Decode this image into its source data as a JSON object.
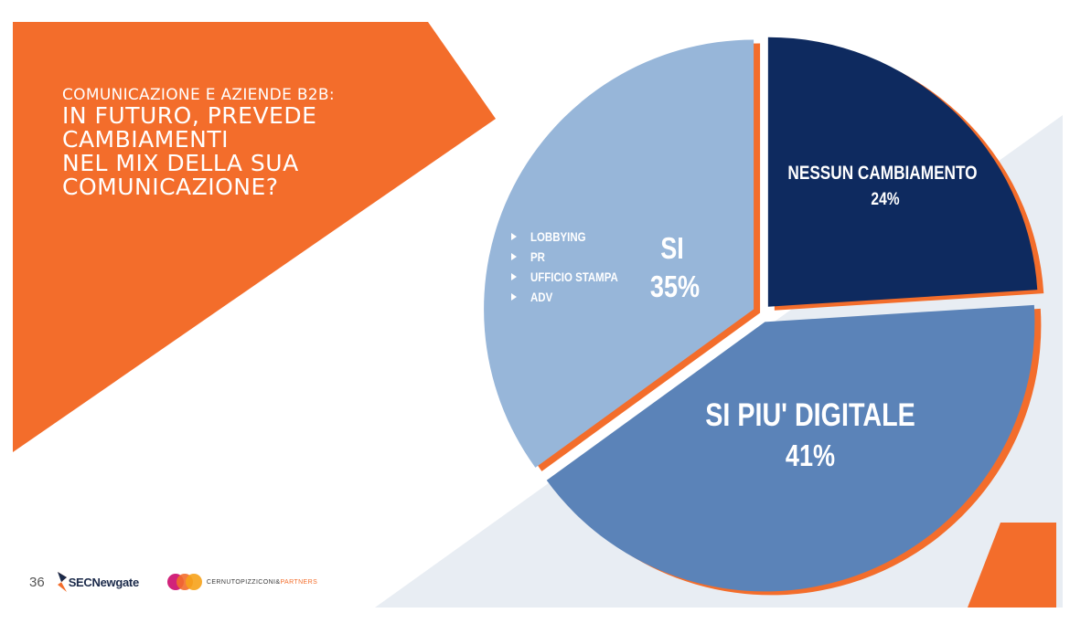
{
  "slide": {
    "page_number": "36",
    "title_line1": "COMUNICAZIONE E AZIENDE B2B:",
    "title_rest": [
      "IN FUTURO, PREVEDE",
      "CAMBIAMENTI",
      "NEL MIX DELLA SUA",
      "COMUNICAZIONE?"
    ],
    "logo_left": {
      "brand": "SECNewgate",
      "tagline": ""
    },
    "logo_right": {
      "main": "CERNUTOPIZZICONI&",
      "accent": "PARTNERS"
    }
  },
  "colors": {
    "orange": "#f36d2b",
    "slice_si": "#97b6d9",
    "slice_digital": "#5b83b8",
    "slice_nessun": "#0e2a5f",
    "bg_stripe": "#e8edf3"
  },
  "chart_data": {
    "type": "pie",
    "title": "",
    "slices": [
      {
        "label": "NESSUN CAMBIAMENTO",
        "value": 24,
        "value_label": "24%"
      },
      {
        "label": "SI PIU' DIGITALE",
        "value": 41,
        "value_label": "41%"
      },
      {
        "label": "SI",
        "value": 35,
        "value_label": "35%",
        "sub_items": [
          "LOBBYING",
          "PR",
          "UFFICIO STAMPA",
          "ADV"
        ]
      }
    ]
  }
}
